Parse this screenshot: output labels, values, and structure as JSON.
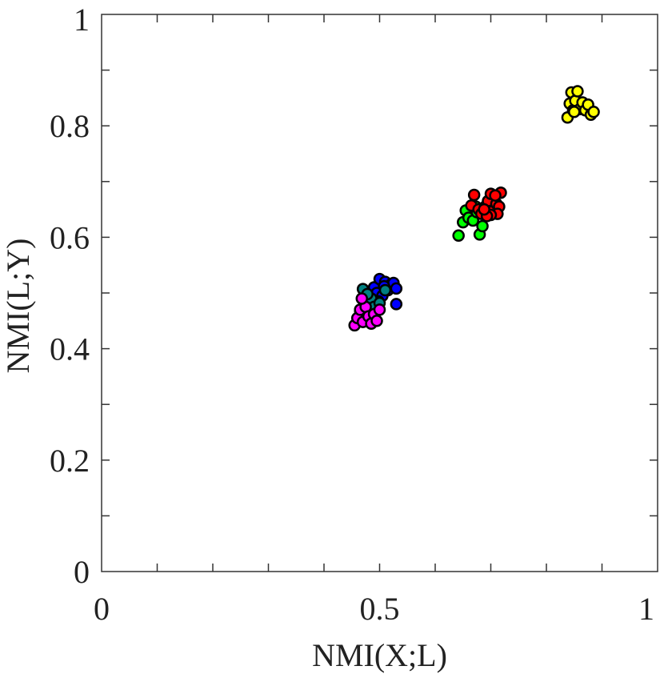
{
  "chart_data": {
    "type": "scatter",
    "title": "",
    "xlabel": "NMI(X;L)",
    "ylabel": "NMI(L;Y)",
    "xlim": [
      0,
      1
    ],
    "ylim": [
      0,
      1
    ],
    "x_ticks": [
      {
        "value": 0,
        "label": "0"
      },
      {
        "value": 0.5,
        "label": "0.5"
      },
      {
        "value": 1,
        "label": "1"
      }
    ],
    "y_ticks": [
      {
        "value": 0,
        "label": "0"
      },
      {
        "value": 0.2,
        "label": "0.2"
      },
      {
        "value": 0.4,
        "label": "0.4"
      },
      {
        "value": 0.6,
        "label": "0.6"
      },
      {
        "value": 0.8,
        "label": "0.8"
      },
      {
        "value": 1,
        "label": "1"
      }
    ],
    "x_minor_step": 0.1,
    "y_minor_step": 0.1,
    "grid": false,
    "legend": "none",
    "series": [
      {
        "color": "#00ff00",
        "points": [
          [
            0.642,
            0.603
          ],
          [
            0.65,
            0.627
          ],
          [
            0.655,
            0.648
          ],
          [
            0.66,
            0.635
          ],
          [
            0.668,
            0.63
          ],
          [
            0.675,
            0.645
          ],
          [
            0.68,
            0.605
          ],
          [
            0.685,
            0.62
          ],
          [
            0.69,
            0.64
          ],
          [
            0.673,
            0.655
          ]
        ]
      },
      {
        "color": "#ff0000",
        "points": [
          [
            0.665,
            0.657
          ],
          [
            0.67,
            0.676
          ],
          [
            0.678,
            0.65
          ],
          [
            0.683,
            0.642
          ],
          [
            0.69,
            0.655
          ],
          [
            0.695,
            0.665
          ],
          [
            0.7,
            0.678
          ],
          [
            0.705,
            0.648
          ],
          [
            0.71,
            0.66
          ],
          [
            0.715,
            0.655
          ],
          [
            0.718,
            0.68
          ],
          [
            0.712,
            0.642
          ],
          [
            0.7,
            0.64
          ],
          [
            0.693,
            0.638
          ],
          [
            0.688,
            0.65
          ],
          [
            0.708,
            0.675
          ]
        ]
      },
      {
        "color": "#ffff00",
        "points": [
          [
            0.838,
            0.815
          ],
          [
            0.842,
            0.84
          ],
          [
            0.845,
            0.86
          ],
          [
            0.848,
            0.828
          ],
          [
            0.852,
            0.845
          ],
          [
            0.856,
            0.862
          ],
          [
            0.86,
            0.83
          ],
          [
            0.865,
            0.842
          ],
          [
            0.87,
            0.828
          ],
          [
            0.875,
            0.838
          ],
          [
            0.88,
            0.82
          ],
          [
            0.885,
            0.825
          ],
          [
            0.85,
            0.825
          ]
        ]
      },
      {
        "color": "#0000ff",
        "points": [
          [
            0.49,
            0.51
          ],
          [
            0.495,
            0.5
          ],
          [
            0.5,
            0.525
          ],
          [
            0.505,
            0.495
          ],
          [
            0.51,
            0.52
          ],
          [
            0.515,
            0.505
          ],
          [
            0.52,
            0.515
          ],
          [
            0.525,
            0.518
          ],
          [
            0.53,
            0.508
          ],
          [
            0.53,
            0.48
          ],
          [
            0.498,
            0.485
          ],
          [
            0.508,
            0.512
          ]
        ]
      },
      {
        "color": "#008080",
        "points": [
          [
            0.47,
            0.507
          ],
          [
            0.485,
            0.49
          ],
          [
            0.49,
            0.475
          ],
          [
            0.5,
            0.482
          ],
          [
            0.51,
            0.505
          ],
          [
            0.478,
            0.498
          ],
          [
            0.465,
            0.468
          ]
        ]
      },
      {
        "color": "#ff00ff",
        "points": [
          [
            0.455,
            0.442
          ],
          [
            0.46,
            0.455
          ],
          [
            0.465,
            0.47
          ],
          [
            0.47,
            0.448
          ],
          [
            0.475,
            0.475
          ],
          [
            0.48,
            0.458
          ],
          [
            0.485,
            0.445
          ],
          [
            0.49,
            0.462
          ],
          [
            0.495,
            0.45
          ],
          [
            0.468,
            0.49
          ],
          [
            0.5,
            0.47
          ]
        ]
      }
    ]
  }
}
